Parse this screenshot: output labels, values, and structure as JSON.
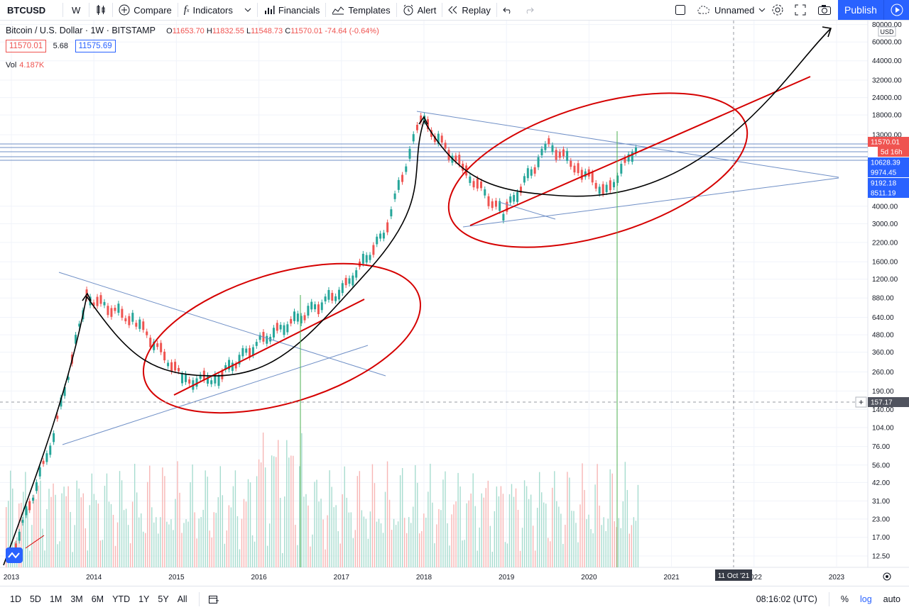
{
  "toolbar": {
    "symbol": "BTCUSD",
    "interval": "W",
    "compare": "Compare",
    "indicators": "Indicators",
    "financials": "Financials",
    "templates": "Templates",
    "alert": "Alert",
    "replay": "Replay",
    "layout_name": "Unnamed",
    "publish": "Publish"
  },
  "legend": {
    "title": "Bitcoin / U.S. Dollar · 1W · BITSTAMP",
    "open_label": "O",
    "open": "11653.70",
    "high_label": "H",
    "high": "11832.55",
    "low_label": "L",
    "low": "11548.73",
    "close_label": "C",
    "close": "11570.01",
    "change": "-74.64 (-0.64%)",
    "bid": "11570.01",
    "spread": "5.68",
    "ask": "11575.69",
    "vol_label": "Vol",
    "vol_value": "4.187K"
  },
  "chart_data": {
    "type": "candlestick",
    "symbol": "BTCUSD",
    "scale": "log",
    "currency": "USD",
    "price_ticks": [
      "80000.00",
      "60000.00",
      "44000.00",
      "32000.00",
      "24000.00",
      "18000.00",
      "13000.00",
      "4000.00",
      "3000.00",
      "2200.00",
      "1600.00",
      "1200.00",
      "880.00",
      "640.00",
      "480.00",
      "360.00",
      "260.00",
      "190.00",
      "140.00",
      "104.00",
      "76.00",
      "56.00",
      "42.00",
      "31.00",
      "23.00",
      "17.00",
      "12.50"
    ],
    "price_badges": [
      {
        "value": "11570.01",
        "color": "#ef5350"
      },
      {
        "value": "5d 16h",
        "color": "#ef5350"
      },
      {
        "value": "10628.39",
        "color": "#2962ff"
      },
      {
        "value": "9974.45",
        "color": "#2962ff"
      },
      {
        "value": "9192.18",
        "color": "#2962ff"
      },
      {
        "value": "8511.19",
        "color": "#2962ff"
      },
      {
        "value": "157.17",
        "color": "#50535e"
      }
    ],
    "time_ticks": [
      "2013",
      "2014",
      "2015",
      "2016",
      "2017",
      "2018",
      "2019",
      "2020",
      "2021",
      "2022",
      "2023"
    ],
    "crosshair_date": "11 Oct '21",
    "x": [
      "2013",
      "2013.5",
      "2013.9",
      "2014.5",
      "2015.1",
      "2015.5",
      "2016",
      "2016.5",
      "2017",
      "2017.5",
      "2017.95",
      "2018.5",
      "2018.95",
      "2019.5",
      "2019.9",
      "2020.2",
      "2020.6"
    ],
    "close": [
      13,
      90,
      900,
      600,
      220,
      240,
      430,
      650,
      1000,
      2500,
      17000,
      7000,
      3500,
      11000,
      7200,
      5000,
      11570
    ],
    "colors": {
      "up": "#26a69a",
      "down": "#ef5350",
      "trend": "#6f8fc6",
      "annotation_red": "#d50000",
      "annotation_black": "#000000",
      "vline": "#4caf50"
    }
  },
  "bottom": {
    "ranges": [
      "1D",
      "5D",
      "1M",
      "3M",
      "6M",
      "YTD",
      "1Y",
      "5Y",
      "All"
    ],
    "time": "08:16:02 (UTC)",
    "percent": "%",
    "log": "log",
    "auto": "auto"
  }
}
